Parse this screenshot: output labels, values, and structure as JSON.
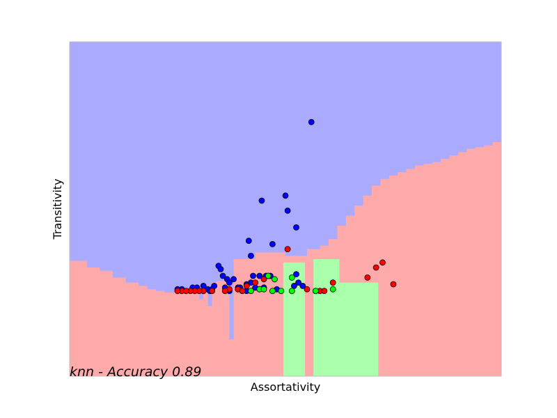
{
  "chart_data": {
    "type": "scatter",
    "title": "",
    "xlabel": "Assortativity",
    "ylabel": "Transitivity",
    "annotation": "knn - Accuracy 0.89",
    "xlim": [
      0,
      100
    ],
    "ylim": [
      0,
      100
    ],
    "xticks": false,
    "yticks": false,
    "grid": false,
    "legend": "none",
    "colors": {
      "region_blue": "#AAAAFF",
      "region_red": "#FFAAAA",
      "region_green": "#AAFFAA",
      "point_blue": "#0000FF",
      "point_red": "#FF0000",
      "point_green": "#00FF00",
      "point_edge": "#000000",
      "spine": "#BFBFBF"
    },
    "decision_regions": {
      "blue_lower_boundary": [
        [
          0,
          35
        ],
        [
          4,
          34.5
        ],
        [
          7,
          32.5
        ],
        [
          10,
          31.5
        ],
        [
          13,
          29.5
        ],
        [
          16,
          28
        ],
        [
          18,
          27
        ],
        [
          20,
          26
        ],
        [
          22,
          25.5
        ],
        [
          24,
          25
        ],
        [
          26,
          25
        ],
        [
          28,
          25
        ],
        [
          30,
          26
        ],
        [
          32,
          27
        ],
        [
          34,
          28
        ],
        [
          36,
          28.5
        ],
        [
          38,
          29
        ],
        [
          40,
          35
        ],
        [
          43,
          35
        ],
        [
          46,
          37
        ],
        [
          48,
          37
        ],
        [
          50,
          37
        ],
        [
          52,
          36
        ],
        [
          55,
          36
        ],
        [
          58,
          38
        ],
        [
          60,
          39
        ],
        [
          62,
          41
        ],
        [
          64,
          45
        ],
        [
          66,
          48
        ],
        [
          68,
          51
        ],
        [
          70,
          54
        ],
        [
          72,
          57
        ],
        [
          74,
          59
        ],
        [
          76,
          60
        ],
        [
          78,
          61
        ],
        [
          80,
          62
        ],
        [
          82,
          63
        ],
        [
          84,
          63.5
        ],
        [
          86,
          64
        ],
        [
          88,
          65
        ],
        [
          90,
          66
        ],
        [
          92,
          67
        ],
        [
          94,
          68
        ],
        [
          96,
          68.5
        ],
        [
          98,
          69
        ],
        [
          100,
          70
        ]
      ],
      "green_bands": [
        {
          "x_from": 49.5,
          "x_to": 54.5,
          "y_top": 34
        },
        {
          "x_from": 56.5,
          "x_to": 62.5,
          "y_top": 35
        },
        {
          "x_from": 60.5,
          "x_to": 71.5,
          "y_top": 28
        }
      ],
      "blue_spikes": [
        {
          "x": 30.5,
          "y_bottom": 23
        },
        {
          "x": 32.5,
          "y_bottom": 21
        },
        {
          "x": 37.5,
          "y_bottom": 11
        }
      ]
    },
    "series": [
      {
        "color": "#0000FF",
        "x": [
          56,
          44.5,
          50,
          50.5,
          52.5,
          41.5,
          42,
          47,
          34.5,
          35,
          35.5,
          36.5,
          37,
          33.5,
          41,
          33,
          41,
          42,
          42.5,
          38,
          39,
          39.5,
          44,
          44,
          45.5,
          46,
          46.5,
          52.5,
          53,
          54,
          28.5,
          29.5,
          32,
          31,
          32.5,
          26,
          25,
          37,
          41,
          36,
          39,
          43,
          45,
          48,
          52
        ],
        "y": [
          76,
          52.5,
          54,
          49.5,
          44.5,
          40.5,
          36,
          39.5,
          33,
          32,
          30,
          29,
          28,
          27,
          27,
          26,
          27.5,
          28,
          30,
          29,
          26,
          26.5,
          26,
          30,
          30,
          30,
          30,
          30.5,
          28,
          27,
          26.5,
          26.5,
          26,
          27,
          25.5,
          26,
          26,
          25.5,
          25.5,
          26.5,
          26.5,
          26.5,
          26.5,
          26,
          27
        ]
      },
      {
        "color": "#FF0000",
        "x": [
          50.5,
          72.5,
          71,
          69,
          75,
          61,
          55,
          58,
          57,
          59,
          45,
          43,
          41,
          39,
          37,
          33,
          31,
          30,
          29,
          28,
          26,
          27,
          25,
          36,
          40
        ],
        "y": [
          38,
          34,
          32.5,
          29.5,
          27.5,
          28,
          26,
          25.5,
          25.5,
          25.5,
          29,
          28,
          27,
          26,
          26,
          25.5,
          25.5,
          25.5,
          25.5,
          25.5,
          25.5,
          25.5,
          25.5,
          25.5,
          25.5
        ]
      },
      {
        "color": "#00FF00",
        "x": [
          46,
          51.5,
          57,
          61,
          47.5,
          44,
          42,
          45,
          47,
          49,
          51.5
        ],
        "y": [
          30,
          29.5,
          25.5,
          26,
          29,
          26,
          25.5,
          26,
          25.5,
          25.5,
          25.5
        ]
      }
    ]
  }
}
